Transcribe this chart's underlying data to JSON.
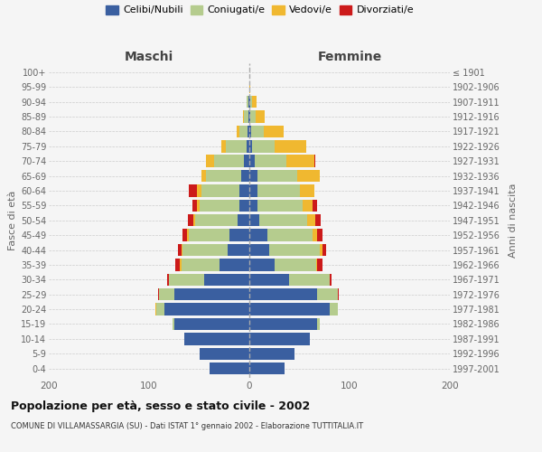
{
  "age_groups": [
    "100+",
    "95-99",
    "90-94",
    "85-89",
    "80-84",
    "75-79",
    "70-74",
    "65-69",
    "60-64",
    "55-59",
    "50-54",
    "45-49",
    "40-44",
    "35-39",
    "30-34",
    "25-29",
    "20-24",
    "15-19",
    "10-14",
    "5-9",
    "0-4"
  ],
  "birth_years": [
    "≤ 1901",
    "1902-1906",
    "1907-1911",
    "1912-1916",
    "1917-1921",
    "1922-1926",
    "1927-1931",
    "1932-1936",
    "1937-1941",
    "1942-1946",
    "1947-1951",
    "1952-1956",
    "1957-1961",
    "1962-1966",
    "1967-1971",
    "1972-1976",
    "1977-1981",
    "1982-1986",
    "1987-1991",
    "1992-1996",
    "1997-2001"
  ],
  "maschi_celibi": [
    0,
    0,
    1,
    1,
    2,
    3,
    5,
    8,
    10,
    10,
    12,
    20,
    22,
    30,
    45,
    75,
    85,
    75,
    65,
    50,
    40
  ],
  "maschi_coniugati": [
    0,
    0,
    2,
    4,
    8,
    20,
    30,
    35,
    38,
    40,
    42,
    40,
    45,
    38,
    35,
    15,
    8,
    2,
    0,
    0,
    0
  ],
  "maschi_vedovi": [
    0,
    0,
    0,
    1,
    3,
    5,
    8,
    5,
    4,
    2,
    2,
    2,
    1,
    1,
    0,
    0,
    1,
    0,
    0,
    0,
    0
  ],
  "maschi_divorziati": [
    0,
    0,
    0,
    0,
    0,
    0,
    0,
    0,
    8,
    5,
    5,
    5,
    3,
    5,
    2,
    1,
    0,
    0,
    0,
    0,
    0
  ],
  "femmine_nubili": [
    0,
    0,
    1,
    1,
    2,
    3,
    5,
    8,
    8,
    8,
    10,
    18,
    20,
    25,
    40,
    68,
    80,
    68,
    60,
    45,
    35
  ],
  "femmine_coniugate": [
    0,
    0,
    2,
    5,
    12,
    22,
    32,
    40,
    42,
    45,
    48,
    45,
    50,
    42,
    40,
    20,
    8,
    2,
    0,
    0,
    0
  ],
  "femmine_vedove": [
    0,
    1,
    4,
    9,
    20,
    32,
    28,
    22,
    15,
    10,
    8,
    5,
    3,
    1,
    0,
    0,
    0,
    0,
    0,
    0,
    0
  ],
  "femmine_divorziate": [
    0,
    0,
    0,
    0,
    0,
    0,
    1,
    0,
    0,
    5,
    5,
    5,
    4,
    5,
    2,
    1,
    0,
    0,
    0,
    0,
    0
  ],
  "colors": {
    "celibi": "#3a5fa0",
    "coniugati": "#b5cc8e",
    "vedovi": "#f0b830",
    "divorziati": "#cc1a1a"
  },
  "xlim": 200,
  "title": "Popolazione per età, sesso e stato civile - 2002",
  "subtitle": "COMUNE DI VILLAMASSARGIA (SU) - Dati ISTAT 1° gennaio 2002 - Elaborazione TUTTITALIA.IT",
  "ylabel_left": "Fasce di età",
  "ylabel_right": "Anni di nascita",
  "label_maschi": "Maschi",
  "label_femmine": "Femmine",
  "legend_labels": [
    "Celibi/Nubili",
    "Coniugati/e",
    "Vedovi/e",
    "Divorziati/e"
  ],
  "bg_color": "#f5f5f5",
  "grid_color": "#cccccc",
  "text_color": "#666666"
}
